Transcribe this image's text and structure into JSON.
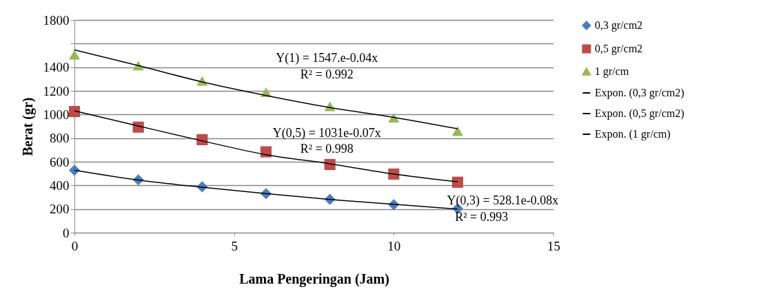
{
  "chart_data": {
    "type": "scatter",
    "xlabel": "Lama Pengeringan (Jam)",
    "ylabel": "Berat (gr)",
    "xlim": [
      0,
      15
    ],
    "xticks": [
      0,
      5,
      10,
      15
    ],
    "ylim": [
      0,
      1800
    ],
    "yticks": [
      0,
      200,
      400,
      600,
      800,
      1000,
      1200,
      1400,
      {
        "value": 1600,
        "label": null
      },
      1800
    ],
    "grid": "y",
    "legend": "right",
    "series": [
      {
        "name": "0,3 gr/cm2",
        "marker": "diamond",
        "color": "#4a7ebb",
        "x": [
          0,
          2,
          4,
          6,
          8,
          10,
          12
        ],
        "values": [
          528,
          447,
          388,
          330,
          282,
          237,
          204
        ]
      },
      {
        "name": "0,5 gr/cm2",
        "marker": "square",
        "color": "#be4b48",
        "x": [
          0,
          2,
          4,
          6,
          8,
          10,
          12
        ],
        "values": [
          1025,
          893,
          787,
          684,
          577,
          496,
          427
        ]
      },
      {
        "name": "1 gr/cm",
        "marker": "triangle",
        "color": "#98b954",
        "x": [
          0,
          2,
          4,
          6,
          8,
          10,
          12
        ],
        "values": [
          1505,
          1414,
          1285,
          1188,
          1069,
          972,
          859
        ]
      },
      {
        "name": "Expon. (0,3 gr/cm2)",
        "type": "line",
        "marker": "none",
        "line_style": "solid",
        "color": "#000000",
        "x": [
          0,
          2,
          4,
          6,
          8,
          10,
          12
        ],
        "values": [
          528,
          445,
          384,
          330,
          281,
          240,
          200
        ]
      },
      {
        "name": "Expon. (0,5 gr/cm2)",
        "type": "line",
        "marker": "none",
        "line_style": "solid",
        "color": "#000000",
        "x": [
          0,
          2,
          4,
          6,
          8,
          10,
          12
        ],
        "values": [
          1031,
          903,
          777,
          660,
          583,
          496,
          431
        ]
      },
      {
        "name": "Expon. (1 gr/cm)",
        "type": "line",
        "marker": "none",
        "line_style": "solid",
        "color": "#000000",
        "x": [
          0,
          2,
          4,
          6,
          8,
          10,
          12
        ],
        "values": [
          1547,
          1414,
          1276,
          1161,
          1059,
          976,
          879
        ]
      }
    ],
    "annotations": [
      "Y(1) = 1547.e-0.04x",
      "R² = 0.992",
      "Y(0,5) = 1031e-0.07x",
      "R² = 0.998",
      "Y(0,3) = 528.1e-0.08x",
      "R² = 0.993"
    ]
  }
}
